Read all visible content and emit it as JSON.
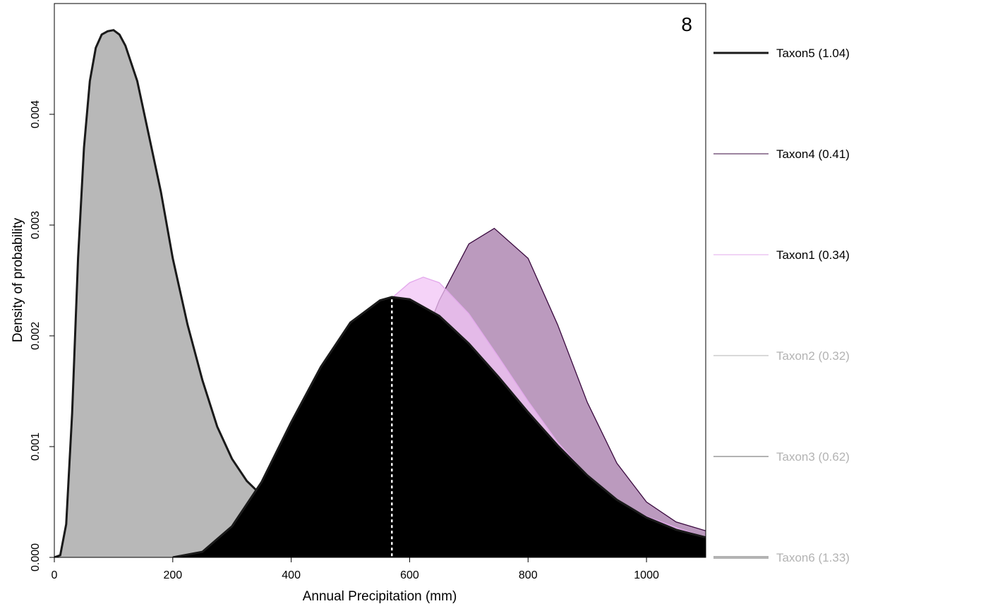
{
  "chart_data": {
    "type": "area",
    "panel_label": "8",
    "xlabel": "Annual Precipitation (mm)",
    "ylabel": "Density of probability",
    "xlim": [
      0,
      1100
    ],
    "ylim": [
      0,
      0.005
    ],
    "x_ticks": [
      0,
      200,
      400,
      600,
      800,
      1000
    ],
    "y_ticks": [
      0.0,
      0.001,
      0.002,
      0.003,
      0.004
    ],
    "y_tick_labels": [
      "0.000",
      "0.001",
      "0.002",
      "0.003",
      "0.004"
    ],
    "x_tick_labels": [
      "0",
      "200",
      "400",
      "600",
      "800",
      "1000"
    ],
    "grid": false,
    "legend_position": "right",
    "dashed_marker_x": 570,
    "series": [
      {
        "name": "Taxon5 (1.04)",
        "color": "#1a1a1a",
        "fill": "#000000",
        "x": [
          200,
          250,
          300,
          350,
          400,
          450,
          500,
          550,
          570,
          600,
          650,
          700,
          750,
          800,
          850,
          900,
          950,
          1000,
          1050,
          1100
        ],
        "y": [
          0.0,
          5e-05,
          0.00028,
          0.00068,
          0.00122,
          0.00172,
          0.00212,
          0.00232,
          0.00235,
          0.00233,
          0.00218,
          0.00193,
          0.00163,
          0.00131,
          0.00101,
          0.00074,
          0.00052,
          0.00036,
          0.00025,
          0.00018
        ]
      },
      {
        "name": "Taxon4 (0.41)",
        "color": "#3a0a3f",
        "fill": "#a478a8",
        "x": [
          450,
          500,
          550,
          600,
          650,
          700,
          743,
          800,
          850,
          900,
          950,
          1000,
          1050,
          1100
        ],
        "y": [
          0.0002,
          0.0005,
          0.001,
          0.00165,
          0.00232,
          0.00283,
          0.00297,
          0.0027,
          0.0021,
          0.0014,
          0.00085,
          0.0005,
          0.00032,
          0.00024
        ]
      },
      {
        "name": "Taxon1 (0.34)",
        "color": "#e3a8ec",
        "fill": "#f1c4f5",
        "x": [
          450,
          500,
          550,
          600,
          623,
          650,
          700,
          750,
          800,
          850,
          900,
          950,
          1000,
          1050,
          1100
        ],
        "y": [
          0.0011,
          0.0017,
          0.00225,
          0.00248,
          0.00253,
          0.00248,
          0.0022,
          0.00181,
          0.00141,
          0.00104,
          0.00074,
          0.00052,
          0.00037,
          0.00027,
          0.00018
        ]
      },
      {
        "name": "Taxon2 (0.32)",
        "color": "#b3b3b3",
        "fill": "none",
        "x": [],
        "y": []
      },
      {
        "name": "Taxon3 (0.62)",
        "color": "#b3b3b3",
        "fill": "none",
        "x": [],
        "y": []
      },
      {
        "name": "Taxon6 (1.33)",
        "color": "#b3b3b3",
        "fill": "#b8b8b8",
        "x": [
          0,
          10,
          20,
          30,
          40,
          50,
          60,
          70,
          80,
          90,
          100,
          110,
          120,
          140,
          160,
          180,
          200,
          225,
          250,
          275,
          300,
          325,
          350,
          375,
          400,
          450,
          500,
          550,
          600,
          650,
          700,
          800,
          900,
          1000,
          1100
        ],
        "y": [
          0.0,
          2e-05,
          0.0003,
          0.0013,
          0.0027,
          0.0037,
          0.0043,
          0.0046,
          0.00472,
          0.00475,
          0.00476,
          0.00472,
          0.00462,
          0.0043,
          0.0038,
          0.0033,
          0.0027,
          0.0021,
          0.0016,
          0.00118,
          0.00089,
          0.00069,
          0.00056,
          0.00047,
          0.00041,
          0.00033,
          0.00028,
          0.00024,
          0.0002,
          0.00017,
          0.00014,
          0.0001,
          7e-05,
          5e-05,
          4e-05
        ]
      }
    ],
    "legend_styles": {
      "Taxon5 (1.04)": {
        "width": 3,
        "text_color": "#000000"
      },
      "Taxon4 (0.41)": {
        "width": 1,
        "text_color": "#000000"
      },
      "Taxon1 (0.34)": {
        "width": 1,
        "text_color": "#000000"
      },
      "Taxon2 (0.32)": {
        "width": 1,
        "text_color": "#b3b3b3"
      },
      "Taxon3 (0.62)": {
        "width": 2,
        "text_color": "#b3b3b3"
      },
      "Taxon6 (1.33)": {
        "width": 4,
        "text_color": "#b3b3b3"
      }
    }
  }
}
